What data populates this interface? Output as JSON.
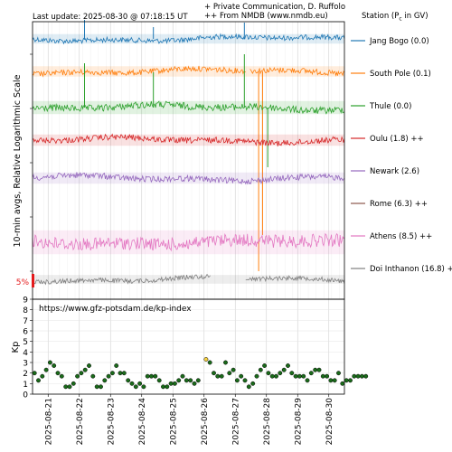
{
  "header": {
    "last_update": "Last update: 2025-08-30 @ 07:18:15 UT",
    "credit_line1": "+ Private Communication, D. Ruffolo",
    "credit_line2": "++ From NMDB (www.nmdb.eu)",
    "legend_title": "Station (P",
    "legend_title_sub": "c",
    "legend_title_end": " in GV)"
  },
  "colors": {
    "axis": "#000000",
    "grid": "#d0d0d0",
    "scale_bar": "#e41a1c",
    "kp_dot": "#1a6b1a",
    "kp_dot_highlight": "#f5d142"
  },
  "chart_data": [
    {
      "type": "line",
      "title": "",
      "ylabel": "10-min avgs, Relative Logarithmic Scale",
      "x_range": [
        "2025-08-20T12:00",
        "2025-08-30T12:00"
      ],
      "scale_bar_label": "5%",
      "series": [
        {
          "name": "Jang Bogo (0.0)",
          "color": "#1f77b4",
          "level": 43,
          "noise": 2.2,
          "spikes": [
            {
              "x": "2025-08-22T04:00",
              "to": 22
            },
            {
              "x": "2025-08-24T09:00",
              "to": 30
            },
            {
              "x": "2025-08-27T07:00",
              "to": 25
            }
          ]
        },
        {
          "name": "South Pole (0.1)",
          "color": "#ff7f0e",
          "level": 79,
          "noise": 2.4,
          "spikes": [
            {
              "x": "2025-08-27T18:00",
              "to": 300
            },
            {
              "x": "2025-08-27T21:00",
              "to": 260
            }
          ]
        },
        {
          "name": "Thule (0.0)",
          "color": "#2ca02c",
          "level": 119,
          "noise": 3.0,
          "spikes": [
            {
              "x": "2025-08-22T04:00",
              "to": 70
            },
            {
              "x": "2025-08-24T09:00",
              "to": 80
            },
            {
              "x": "2025-08-27T07:00",
              "to": 60
            },
            {
              "x": "2025-08-28T01:00",
              "to": 185
            }
          ]
        },
        {
          "name": "Oulu (1.8) ++",
          "color": "#d62728",
          "level": 155,
          "noise": 2.6,
          "spikes": []
        },
        {
          "name": "Newark (2.6)",
          "color": "#9467bd",
          "level": 197,
          "noise": 2.6,
          "spikes": []
        },
        {
          "name": "Rome (6.3) ++",
          "color": "#8c564b",
          "level": 230,
          "noise": 0,
          "spikes": []
        },
        {
          "name": "Athens (8.5) ++",
          "color": "#e377c2",
          "level": 268,
          "noise": 5.5,
          "spikes": []
        },
        {
          "name": "Doi Inthanon (16.8) +",
          "color": "#7f7f7f",
          "level": 309,
          "noise": 2.0,
          "spikes": []
        }
      ]
    },
    {
      "type": "scatter",
      "title": "",
      "ylabel": "Kp",
      "source": "https://www.gfz-potsdam.de/kp-index",
      "ylim": [
        0,
        9
      ],
      "yticks": [
        0,
        1,
        2,
        3,
        4,
        5,
        6,
        7,
        8,
        9
      ],
      "xtick_labels": [
        "2025-08-21",
        "2025-08-22",
        "2025-08-23",
        "2025-08-24",
        "2025-08-25",
        "2025-08-26",
        "2025-08-27",
        "2025-08-28",
        "2025-08-29",
        "2025-08-30"
      ],
      "start": "2025-08-20T12:00",
      "interval_hours": 3,
      "values": [
        2.0,
        1.3,
        1.7,
        2.3,
        3.0,
        2.7,
        2.0,
        1.7,
        0.7,
        0.7,
        1.0,
        1.7,
        2.0,
        2.3,
        2.7,
        1.7,
        0.7,
        0.7,
        1.3,
        1.7,
        2.0,
        2.7,
        2.0,
        2.0,
        1.3,
        1.0,
        0.7,
        1.0,
        0.7,
        1.7,
        1.7,
        1.7,
        1.3,
        0.7,
        0.7,
        1.0,
        1.0,
        1.3,
        1.7,
        1.3,
        1.3,
        1.0,
        1.3,
        null,
        3.3,
        3.0,
        2.0,
        1.7,
        1.7,
        3.0,
        2.0,
        2.3,
        1.3,
        1.7,
        1.3,
        0.7,
        1.0,
        1.7,
        2.3,
        2.7,
        2.0,
        1.7,
        1.7,
        2.0,
        2.3,
        2.7,
        2.0,
        1.7,
        1.7,
        1.7,
        1.3,
        2.0,
        2.3,
        2.3,
        1.7,
        1.7,
        1.3,
        1.3,
        2.0,
        1.0,
        1.3,
        1.3,
        1.7,
        1.7,
        1.7,
        1.7
      ],
      "highlight_index": 44
    }
  ]
}
